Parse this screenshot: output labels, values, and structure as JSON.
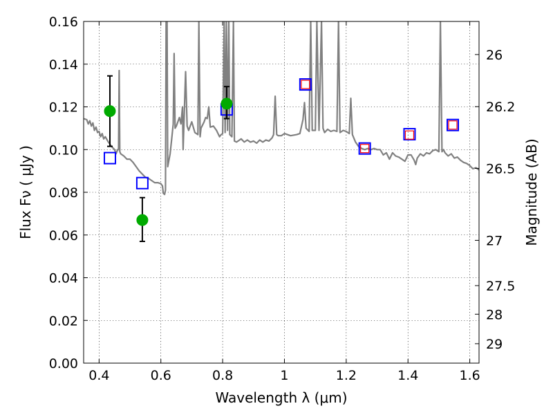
{
  "chart_data": {
    "type": "line",
    "xlabel": "Wavelength  λ (μm)",
    "ylabel": "Flux  Fν  ( μJy )",
    "ylabel_right": "Magnitude (AB)",
    "xlim": [
      0.35,
      1.63
    ],
    "ylim": [
      0,
      0.16
    ],
    "grid": true,
    "x_ticks": [
      0.4,
      0.6,
      0.8,
      1.0,
      1.2,
      1.4,
      1.6
    ],
    "x_tick_labels": [
      "0.4",
      "0.6",
      "0.8",
      "1",
      "1.2",
      "1.4",
      "1.6"
    ],
    "y_ticks": [
      0.0,
      0.02,
      0.04,
      0.06,
      0.08,
      0.1,
      0.12,
      0.14,
      0.16
    ],
    "y_tick_labels": [
      "0.00",
      "0.02",
      "0.04",
      "0.06",
      "0.08",
      "0.10",
      "0.12",
      "0.14",
      "0.16"
    ],
    "right_ticks": [
      {
        "label": "26",
        "flux": 0.1445
      },
      {
        "label": "26.2",
        "flux": 0.1201
      },
      {
        "label": "26.5",
        "flux": 0.0912
      },
      {
        "label": "27",
        "flux": 0.0575
      },
      {
        "label": "27.5",
        "flux": 0.0363
      },
      {
        "label": "28",
        "flux": 0.0229
      },
      {
        "label": "29",
        "flux": 0.0091
      }
    ],
    "series": [
      {
        "kind": "spectrum",
        "color": "#808080",
        "points": [
          [
            0.35,
            0.1145
          ],
          [
            0.36,
            0.114
          ],
          [
            0.365,
            0.112
          ],
          [
            0.37,
            0.1135
          ],
          [
            0.375,
            0.111
          ],
          [
            0.38,
            0.1125
          ],
          [
            0.385,
            0.109
          ],
          [
            0.39,
            0.1105
          ],
          [
            0.395,
            0.108
          ],
          [
            0.4,
            0.1085
          ],
          [
            0.405,
            0.106
          ],
          [
            0.41,
            0.1075
          ],
          [
            0.415,
            0.105
          ],
          [
            0.42,
            0.106
          ],
          [
            0.43,
            0.1035
          ],
          [
            0.44,
            0.1015
          ],
          [
            0.45,
            0.1
          ],
          [
            0.455,
            0.098
          ],
          [
            0.46,
            0.1
          ],
          [
            0.463,
            0.1
          ],
          [
            0.465,
            0.137
          ],
          [
            0.467,
            0.099
          ],
          [
            0.47,
            0.098
          ],
          [
            0.48,
            0.097
          ],
          [
            0.49,
            0.0955
          ],
          [
            0.5,
            0.0955
          ],
          [
            0.51,
            0.094
          ],
          [
            0.52,
            0.092
          ],
          [
            0.53,
            0.09
          ],
          [
            0.54,
            0.0885
          ],
          [
            0.55,
            0.087
          ],
          [
            0.56,
            0.0865
          ],
          [
            0.57,
            0.0855
          ],
          [
            0.58,
            0.0845
          ],
          [
            0.59,
            0.0845
          ],
          [
            0.6,
            0.084
          ],
          [
            0.605,
            0.083
          ],
          [
            0.608,
            0.0795
          ],
          [
            0.612,
            0.079
          ],
          [
            0.615,
            0.081
          ],
          [
            0.617,
            0.16
          ],
          [
            0.62,
            0.16
          ],
          [
            0.622,
            0.092
          ],
          [
            0.63,
            0.098
          ],
          [
            0.635,
            0.105
          ],
          [
            0.64,
            0.112
          ],
          [
            0.643,
            0.145
          ],
          [
            0.646,
            0.11
          ],
          [
            0.65,
            0.111
          ],
          [
            0.655,
            0.113
          ],
          [
            0.66,
            0.115
          ],
          [
            0.665,
            0.112
          ],
          [
            0.67,
            0.12
          ],
          [
            0.672,
            0.1
          ],
          [
            0.68,
            0.1365
          ],
          [
            0.685,
            0.111
          ],
          [
            0.69,
            0.109
          ],
          [
            0.7,
            0.113
          ],
          [
            0.71,
            0.108
          ],
          [
            0.72,
            0.107
          ],
          [
            0.723,
            0.16
          ],
          [
            0.727,
            0.106
          ],
          [
            0.73,
            0.11
          ],
          [
            0.74,
            0.113
          ],
          [
            0.745,
            0.115
          ],
          [
            0.75,
            0.1145
          ],
          [
            0.755,
            0.12
          ],
          [
            0.76,
            0.1105
          ],
          [
            0.77,
            0.111
          ],
          [
            0.78,
            0.109
          ],
          [
            0.79,
            0.106
          ],
          [
            0.795,
            0.107
          ],
          [
            0.8,
            0.1075
          ],
          [
            0.805,
            0.16
          ],
          [
            0.808,
            0.108
          ],
          [
            0.812,
            0.16
          ],
          [
            0.816,
            0.109
          ],
          [
            0.82,
            0.16
          ],
          [
            0.823,
            0.107
          ],
          [
            0.83,
            0.106
          ],
          [
            0.835,
            0.16
          ],
          [
            0.838,
            0.104
          ],
          [
            0.845,
            0.1035
          ],
          [
            0.86,
            0.105
          ],
          [
            0.87,
            0.1035
          ],
          [
            0.88,
            0.1045
          ],
          [
            0.89,
            0.1035
          ],
          [
            0.9,
            0.104
          ],
          [
            0.91,
            0.103
          ],
          [
            0.92,
            0.1045
          ],
          [
            0.93,
            0.1035
          ],
          [
            0.94,
            0.1045
          ],
          [
            0.95,
            0.104
          ],
          [
            0.96,
            0.1055
          ],
          [
            0.965,
            0.107
          ],
          [
            0.97,
            0.125
          ],
          [
            0.975,
            0.107
          ],
          [
            0.98,
            0.1065
          ],
          [
            0.99,
            0.1065
          ],
          [
            1.0,
            0.1075
          ],
          [
            1.02,
            0.1065
          ],
          [
            1.04,
            0.107
          ],
          [
            1.05,
            0.1075
          ],
          [
            1.06,
            0.114
          ],
          [
            1.065,
            0.122
          ],
          [
            1.07,
            0.11
          ],
          [
            1.08,
            0.1085
          ],
          [
            1.085,
            0.16
          ],
          [
            1.09,
            0.109
          ],
          [
            1.1,
            0.109
          ],
          [
            1.105,
            0.16
          ],
          [
            1.112,
            0.109
          ],
          [
            1.12,
            0.16
          ],
          [
            1.125,
            0.11
          ],
          [
            1.13,
            0.108
          ],
          [
            1.14,
            0.1095
          ],
          [
            1.15,
            0.1085
          ],
          [
            1.16,
            0.109
          ],
          [
            1.17,
            0.1085
          ],
          [
            1.175,
            0.16
          ],
          [
            1.18,
            0.108
          ],
          [
            1.19,
            0.109
          ],
          [
            1.2,
            0.1085
          ],
          [
            1.21,
            0.1075
          ],
          [
            1.215,
            0.124
          ],
          [
            1.22,
            0.107
          ],
          [
            1.23,
            0.1035
          ],
          [
            1.24,
            0.1015
          ],
          [
            1.25,
            0.1005
          ],
          [
            1.26,
            0.1
          ],
          [
            1.27,
            0.1005
          ],
          [
            1.28,
            0.1
          ],
          [
            1.29,
            0.1005
          ],
          [
            1.3,
            0.1
          ],
          [
            1.31,
            0.1
          ],
          [
            1.32,
            0.0975
          ],
          [
            1.33,
            0.0985
          ],
          [
            1.34,
            0.0955
          ],
          [
            1.35,
            0.0985
          ],
          [
            1.36,
            0.097
          ],
          [
            1.37,
            0.0965
          ],
          [
            1.38,
            0.0955
          ],
          [
            1.39,
            0.0945
          ],
          [
            1.4,
            0.0975
          ],
          [
            1.41,
            0.0975
          ],
          [
            1.42,
            0.095
          ],
          [
            1.425,
            0.093
          ],
          [
            1.43,
            0.096
          ],
          [
            1.44,
            0.098
          ],
          [
            1.45,
            0.097
          ],
          [
            1.46,
            0.0985
          ],
          [
            1.47,
            0.098
          ],
          [
            1.48,
            0.0995
          ],
          [
            1.49,
            0.1
          ],
          [
            1.5,
            0.099
          ],
          [
            1.505,
            0.16
          ],
          [
            1.51,
            0.099
          ],
          [
            1.515,
            0.1
          ],
          [
            1.52,
            0.0985
          ],
          [
            1.53,
            0.097
          ],
          [
            1.54,
            0.098
          ],
          [
            1.55,
            0.096
          ],
          [
            1.56,
            0.0965
          ],
          [
            1.57,
            0.095
          ],
          [
            1.58,
            0.094
          ],
          [
            1.59,
            0.0935
          ],
          [
            1.6,
            0.0925
          ],
          [
            1.61,
            0.091
          ],
          [
            1.62,
            0.0915
          ],
          [
            1.63,
            0.0905
          ]
        ]
      },
      {
        "kind": "model_photometry",
        "marker": "open-square",
        "color": "#0000ff",
        "points": [
          [
            0.435,
            0.096
          ],
          [
            0.54,
            0.0843
          ],
          [
            0.813,
            0.1188
          ],
          [
            1.068,
            0.1305
          ],
          [
            1.26,
            0.1005
          ],
          [
            1.405,
            0.1072
          ],
          [
            1.545,
            0.1115
          ]
        ]
      },
      {
        "kind": "observed_photometry_small",
        "marker": "open-square",
        "color": "#ff0000",
        "points": [
          [
            1.068,
            0.1305
          ],
          [
            1.26,
            0.1005
          ],
          [
            1.405,
            0.1068
          ],
          [
            1.545,
            0.1115
          ]
        ]
      },
      {
        "kind": "observed_photometry",
        "marker": "filled-circle",
        "color": "#00aa00",
        "errorbar_color": "#000000",
        "points": [
          {
            "x": 0.435,
            "y": 0.118,
            "lo": 0.1015,
            "hi": 0.1345
          },
          {
            "x": 0.54,
            "y": 0.067,
            "lo": 0.057,
            "hi": 0.0775
          },
          {
            "x": 0.813,
            "y": 0.1215,
            "lo": 0.1145,
            "hi": 0.1295
          }
        ]
      }
    ]
  }
}
